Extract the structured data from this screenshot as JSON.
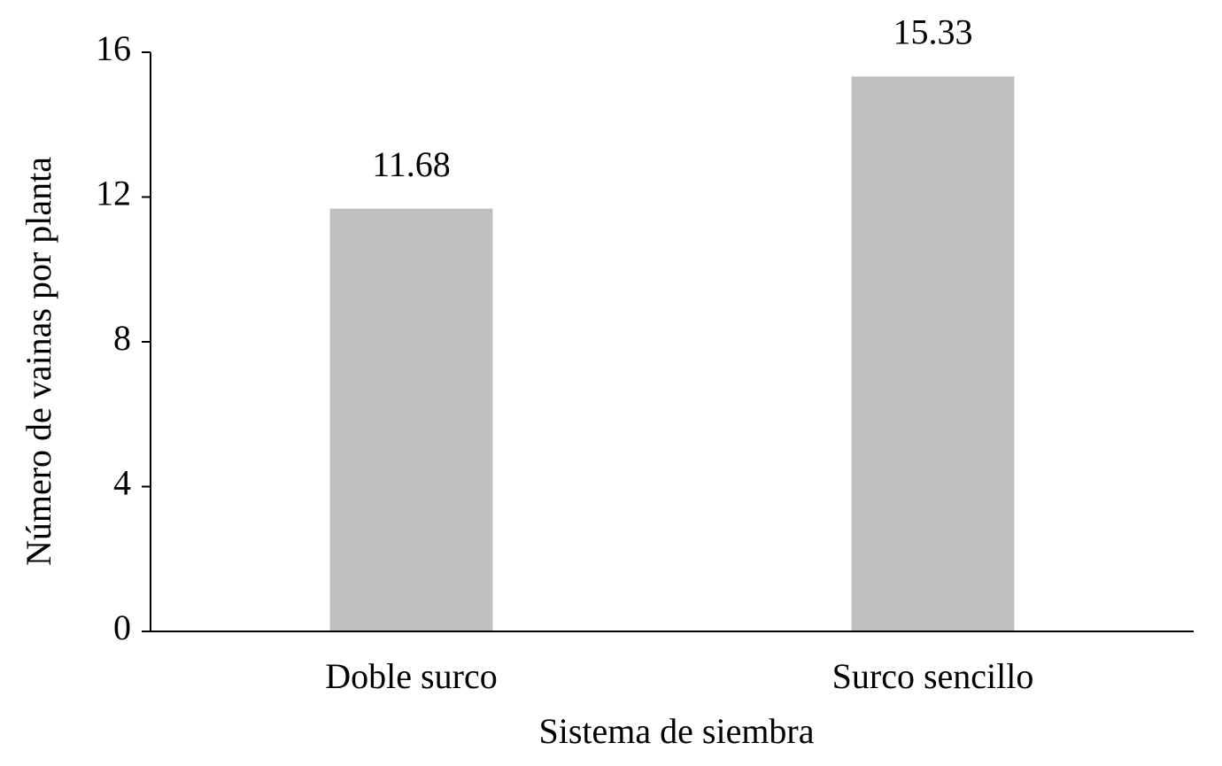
{
  "chart_data": {
    "type": "bar",
    "x_label": "Sistema de siembra",
    "y_label": "Número de vainas por planta",
    "categories": [
      "Doble surco",
      "Surco sencillo"
    ],
    "values": [
      11.68,
      15.33
    ],
    "color": "#bfbfbf",
    "ylim": [
      0,
      16
    ],
    "yticks": [
      0,
      4,
      8,
      12,
      16
    ],
    "grid": false
  }
}
